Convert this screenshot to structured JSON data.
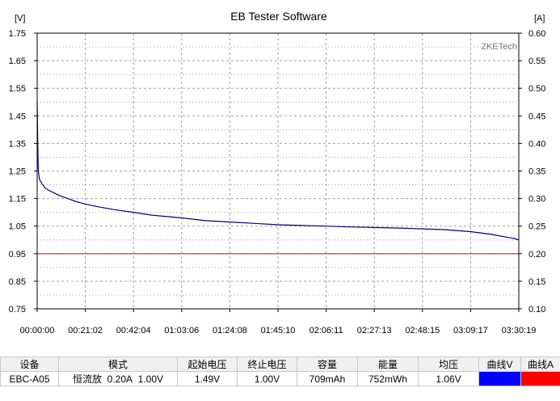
{
  "chart_data": {
    "type": "line",
    "title": "EB Tester Software",
    "watermark": "ZKETech",
    "y_left": {
      "unit": "[V]",
      "range": [
        0.75,
        1.75
      ],
      "ticks": [
        "0.75",
        "0.85",
        "0.95",
        "1.05",
        "1.15",
        "1.25",
        "1.35",
        "1.45",
        "1.55",
        "1.65",
        "1.75"
      ]
    },
    "y_right": {
      "unit": "[A]",
      "range": [
        0.1,
        0.6
      ],
      "ticks": [
        "0.10",
        "0.15",
        "0.20",
        "0.25",
        "0.30",
        "0.35",
        "0.40",
        "0.45",
        "0.50",
        "0.55",
        "0.60"
      ]
    },
    "x_ticks": [
      "00:00:00",
      "00:21:02",
      "00:42:04",
      "01:03:06",
      "01:24:08",
      "01:45:10",
      "02:06:11",
      "02:27:13",
      "02:48:15",
      "03:09:17",
      "03:30:19"
    ],
    "x_range_seconds": [
      0,
      12619
    ],
    "grid": true,
    "series": [
      {
        "axis": "left",
        "color": "#000080",
        "points": [
          [
            0,
            1.5
          ],
          [
            15,
            1.35
          ],
          [
            30,
            1.25
          ],
          [
            60,
            1.22
          ],
          [
            120,
            1.205
          ],
          [
            200,
            1.19
          ],
          [
            300,
            1.18
          ],
          [
            450,
            1.17
          ],
          [
            600,
            1.16
          ],
          [
            800,
            1.15
          ],
          [
            1000,
            1.14
          ],
          [
            1262,
            1.13
          ],
          [
            1600,
            1.12
          ],
          [
            2000,
            1.11
          ],
          [
            2524,
            1.1
          ],
          [
            3000,
            1.09
          ],
          [
            3786,
            1.08
          ],
          [
            4400,
            1.07
          ],
          [
            5048,
            1.065
          ],
          [
            5700,
            1.06
          ],
          [
            6310,
            1.055
          ],
          [
            7000,
            1.052
          ],
          [
            7572,
            1.05
          ],
          [
            8200,
            1.047
          ],
          [
            8833,
            1.045
          ],
          [
            9500,
            1.043
          ],
          [
            10095,
            1.04
          ],
          [
            10700,
            1.037
          ],
          [
            11357,
            1.03
          ],
          [
            11900,
            1.02
          ],
          [
            12300,
            1.01
          ],
          [
            12500,
            1.005
          ],
          [
            12619,
            1.0
          ]
        ]
      },
      {
        "axis": "right",
        "color": "#e02020",
        "points": [
          [
            0,
            0.2
          ],
          [
            12619,
            0.2
          ]
        ]
      }
    ]
  },
  "table": {
    "headers": [
      "设备",
      "模式",
      "起始电压",
      "终止电压",
      "容量",
      "能量",
      "均压",
      "曲线V",
      "曲线A"
    ],
    "row": {
      "device": "EBC-A05",
      "mode_name": "恒流放",
      "mode_current": "0.20A",
      "mode_voltage": "1.00V",
      "start_voltage": "1.49V",
      "end_voltage": "1.00V",
      "capacity": "709mAh",
      "energy": "752mWh",
      "avg_voltage": "1.06V"
    },
    "swatch_v": "#0000ff",
    "swatch_a": "#ff0000"
  }
}
